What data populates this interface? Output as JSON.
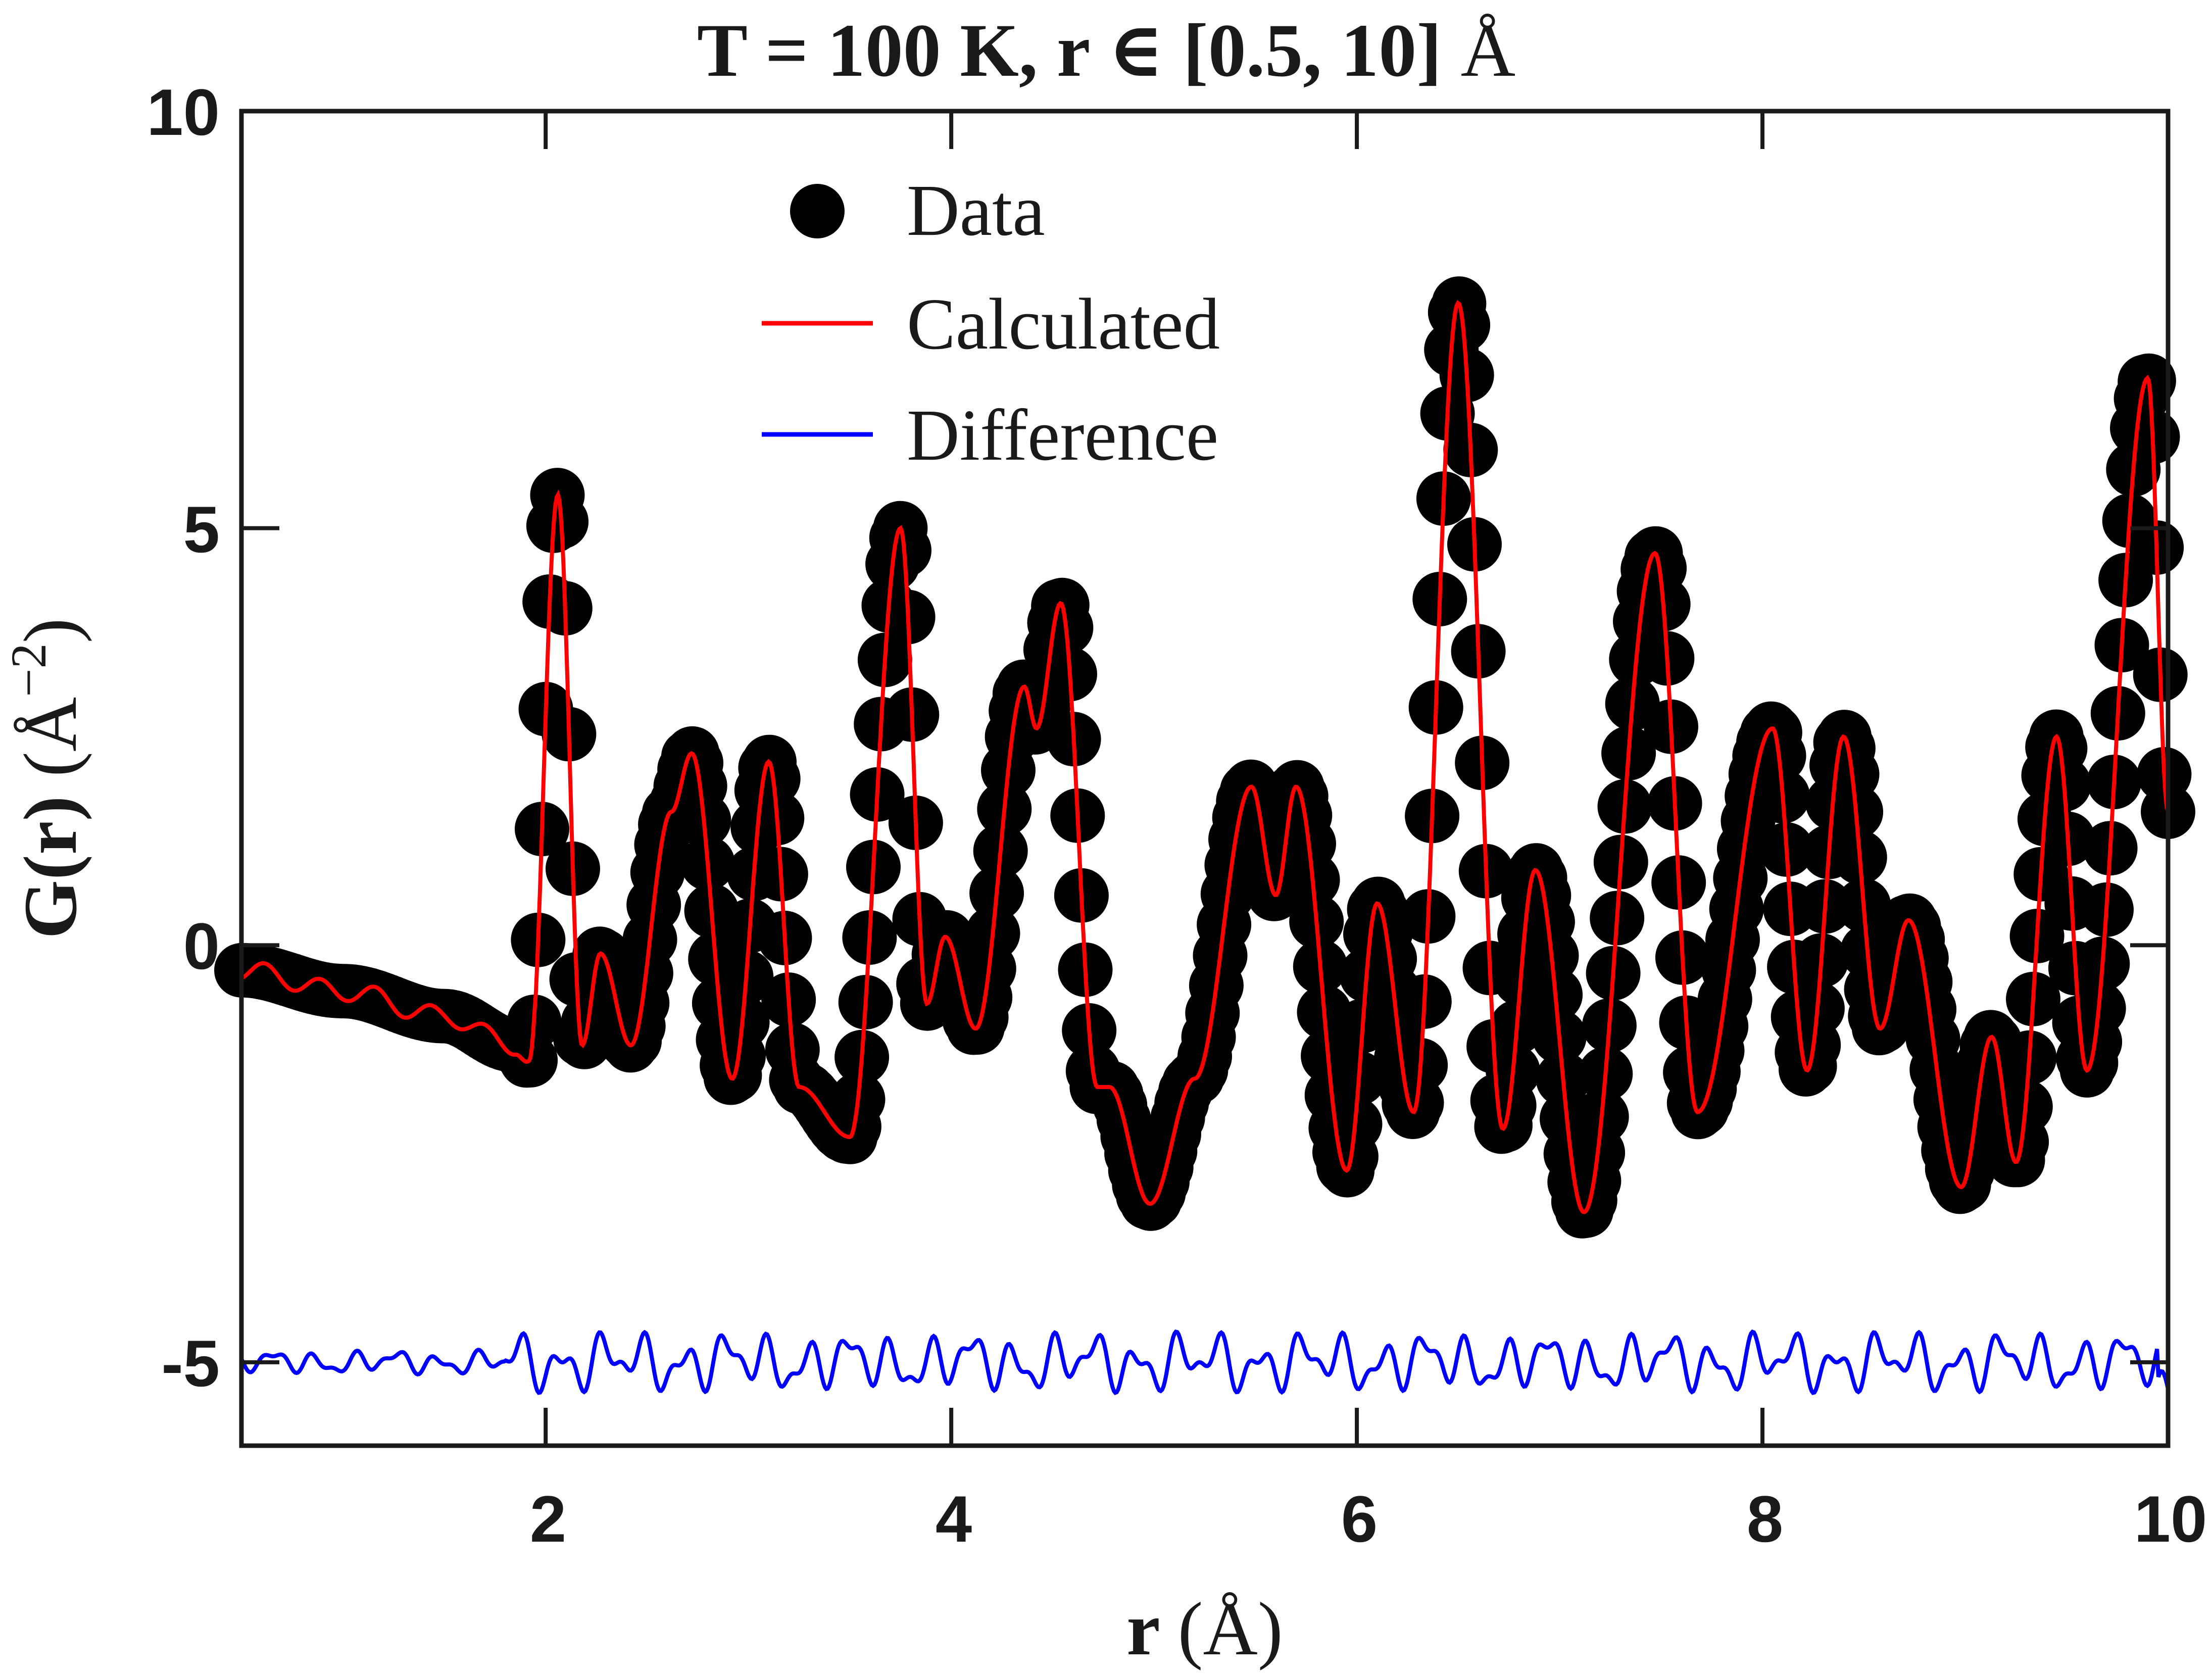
{
  "chart_data": {
    "type": "line",
    "title_main": "T = 100 K, r ∈ [0.5, 10] ",
    "title_unit": "Å",
    "xlabel_main": "r ",
    "xlabel_unit": "(Å)",
    "ylabel_main": "G(r) ",
    "ylabel_unit": "(Å",
    "ylabel_exp": "−2",
    "ylabel_close": ")",
    "xlim": [
      0.5,
      10
    ],
    "ylim": [
      -6,
      10
    ],
    "xticks": [
      2,
      4,
      6,
      8,
      10
    ],
    "yticks": [
      10,
      5,
      0,
      -5
    ],
    "xtick_labels": [
      "2",
      "4",
      "6",
      "8",
      "10"
    ],
    "ytick_labels": [
      "10",
      "5",
      "0",
      "-5"
    ],
    "grid": false,
    "legend_position": "top-center",
    "legend": [
      "Data",
      "Calculated",
      "Difference"
    ],
    "colors": {
      "data": "#000000",
      "calculated": "#ff0000",
      "difference": "#0000ff",
      "axes": "#1a1a1a"
    },
    "peaks_description": [
      {
        "r": 0.5,
        "G": -0.3
      },
      {
        "r": 1.0,
        "G": -0.55
      },
      {
        "r": 1.5,
        "G": -0.85
      },
      {
        "r": 1.85,
        "G": -1.2
      },
      {
        "r": 1.92,
        "G": -1.4
      },
      {
        "r": 2.06,
        "G": 5.4
      },
      {
        "r": 2.18,
        "G": -1.2
      },
      {
        "r": 2.27,
        "G": -0.1
      },
      {
        "r": 2.42,
        "G": -1.2
      },
      {
        "r": 2.62,
        "G": 1.6
      },
      {
        "r": 2.72,
        "G": 2.3
      },
      {
        "r": 2.92,
        "G": -1.6
      },
      {
        "r": 3.1,
        "G": 2.2
      },
      {
        "r": 3.25,
        "G": -1.7
      },
      {
        "r": 3.5,
        "G": -2.3
      },
      {
        "r": 3.75,
        "G": 5.0
      },
      {
        "r": 3.88,
        "G": -0.7
      },
      {
        "r": 3.97,
        "G": 0.1
      },
      {
        "r": 4.12,
        "G": -1.0
      },
      {
        "r": 4.36,
        "G": 3.1
      },
      {
        "r": 4.42,
        "G": 2.6
      },
      {
        "r": 4.54,
        "G": 4.1
      },
      {
        "r": 4.72,
        "G": -1.7
      },
      {
        "r": 4.78,
        "G": -1.7
      },
      {
        "r": 4.98,
        "G": -3.1
      },
      {
        "r": 5.2,
        "G": -1.6
      },
      {
        "r": 5.48,
        "G": 1.9
      },
      {
        "r": 5.6,
        "G": 0.6
      },
      {
        "r": 5.7,
        "G": 1.9
      },
      {
        "r": 5.95,
        "G": -2.7
      },
      {
        "r": 6.1,
        "G": 0.5
      },
      {
        "r": 6.28,
        "G": -2.0
      },
      {
        "r": 6.5,
        "G": 7.7
      },
      {
        "r": 6.72,
        "G": -2.2
      },
      {
        "r": 6.88,
        "G": 0.9
      },
      {
        "r": 7.12,
        "G": -3.2
      },
      {
        "r": 7.47,
        "G": 4.7
      },
      {
        "r": 7.68,
        "G": -2.0
      },
      {
        "r": 8.05,
        "G": 2.6
      },
      {
        "r": 8.22,
        "G": -1.5
      },
      {
        "r": 8.4,
        "G": 2.5
      },
      {
        "r": 8.58,
        "G": -1.0
      },
      {
        "r": 8.72,
        "G": 0.3
      },
      {
        "r": 8.98,
        "G": -2.9
      },
      {
        "r": 9.13,
        "G": -1.1
      },
      {
        "r": 9.25,
        "G": -2.6
      },
      {
        "r": 9.45,
        "G": 2.5
      },
      {
        "r": 9.6,
        "G": -1.5
      },
      {
        "r": 9.9,
        "G": 6.8
      },
      {
        "r": 10.0,
        "G": 1.6
      }
    ],
    "difference_offset": -5.0
  }
}
